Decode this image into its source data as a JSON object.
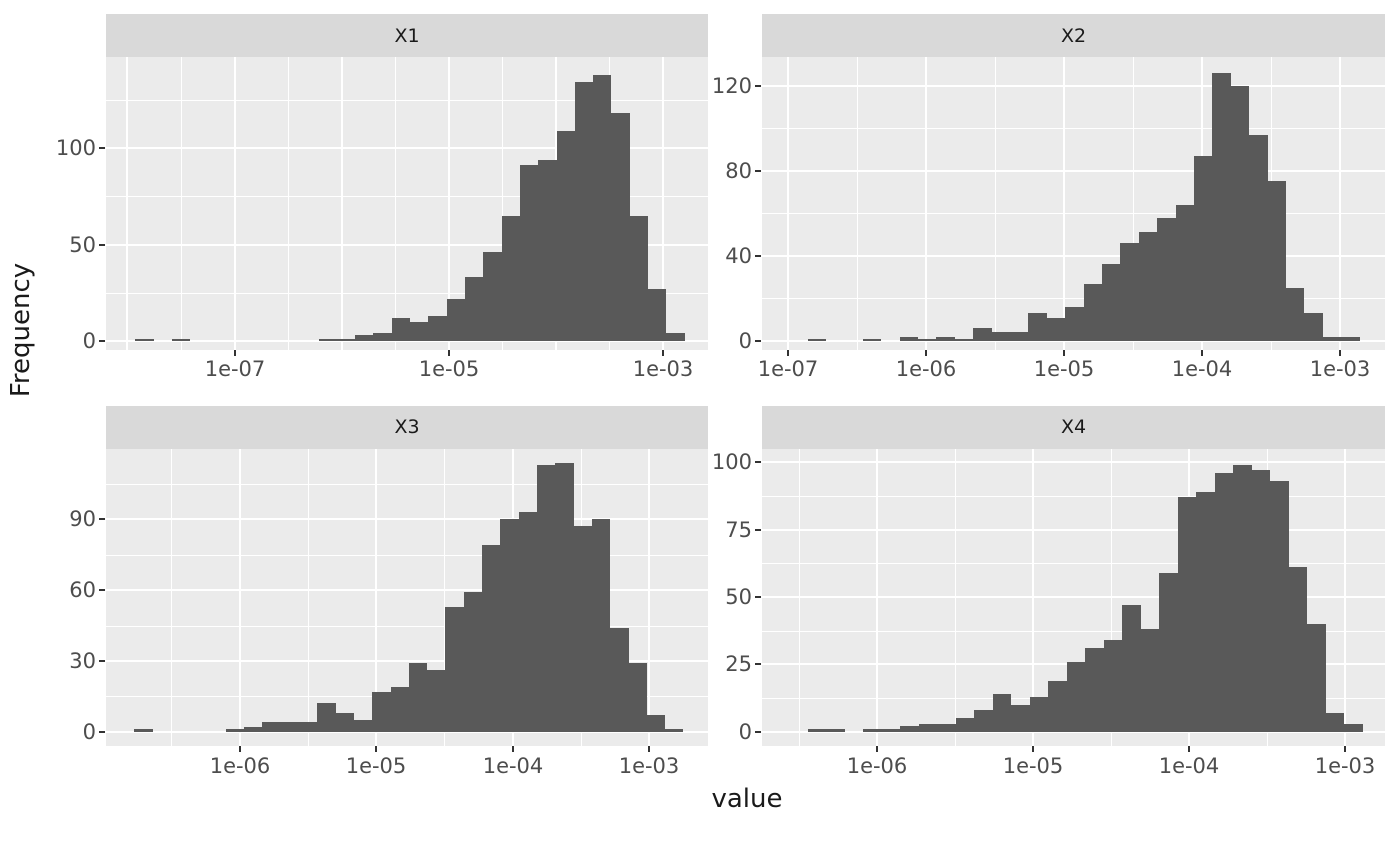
{
  "figure": {
    "x_axis_title": "value",
    "y_axis_title": "Frequency",
    "colors": {
      "page_bg": "#FFFFFF",
      "panel_bg": "#EBEBEB",
      "strip_bg": "#D9D9D9",
      "strip_text": "#1A1A1A",
      "bar": "#595959",
      "gridline": "#FFFFFF",
      "tick_label": "#4D4D4D",
      "tick_mark": "#333333",
      "axis_title": "#1A1A1A"
    }
  },
  "chart_data": [
    {
      "type": "bar",
      "subtype": "histogram",
      "facet": "X1",
      "x_scale": "log10",
      "xlim_log10": [
        -8.2,
        -2.58
      ],
      "ylim": [
        -4.65,
        147.15
      ],
      "grid": true,
      "x_ticks": [
        {
          "log10": -7,
          "label": "1e-07"
        },
        {
          "log10": -5,
          "label": "1e-05"
        },
        {
          "log10": -3,
          "label": "1e-03"
        }
      ],
      "x_grid_major_log10": [
        -8,
        -7,
        -6,
        -5,
        -4,
        -3
      ],
      "x_grid_minor_log10": [
        -7.5,
        -6.5,
        -5.5,
        -4.5,
        -3.5
      ],
      "y_ticks": [
        {
          "value": 0,
          "label": "0"
        },
        {
          "value": 50,
          "label": "50"
        },
        {
          "value": 100,
          "label": "100"
        }
      ],
      "y_grid_minor": [
        25,
        75,
        125
      ],
      "bins": {
        "start_log10": -7.925,
        "width_log10": 0.1709,
        "frequencies": [
          1,
          0,
          1,
          0,
          0,
          0,
          0,
          0,
          0,
          0,
          1,
          1,
          3,
          4,
          12,
          10,
          13,
          22,
          33,
          46,
          65,
          91,
          94,
          109,
          134,
          138,
          118,
          65,
          27,
          4
        ]
      }
    },
    {
      "type": "bar",
      "subtype": "histogram",
      "facet": "X2",
      "x_scale": "log10",
      "xlim_log10": [
        -7.186,
        -2.676
      ],
      "ylim": [
        -4.23,
        133.46
      ],
      "grid": true,
      "x_ticks": [
        {
          "log10": -7,
          "label": "1e-07"
        },
        {
          "log10": -6,
          "label": "1e-06"
        },
        {
          "log10": -5,
          "label": "1e-05"
        },
        {
          "log10": -4,
          "label": "1e-04"
        },
        {
          "log10": -3,
          "label": "1e-03"
        }
      ],
      "x_grid_major_log10": [
        -7,
        -6,
        -5,
        -4,
        -3
      ],
      "x_grid_minor_log10": [
        -6.5,
        -5.5,
        -4.5,
        -3.5
      ],
      "y_ticks": [
        {
          "value": 0,
          "label": "0"
        },
        {
          "value": 40,
          "label": "40"
        },
        {
          "value": 80,
          "label": "80"
        },
        {
          "value": 120,
          "label": "120"
        }
      ],
      "y_grid_minor": [
        20,
        60,
        100
      ],
      "bins": {
        "start_log10": -6.856,
        "width_log10": 0.1332,
        "frequencies": [
          1,
          0,
          0,
          1,
          0,
          2,
          1,
          2,
          1,
          6,
          4,
          4,
          13,
          11,
          16,
          27,
          36,
          46,
          51,
          58,
          64,
          87,
          126,
          120,
          97,
          75,
          25,
          13,
          2,
          2
        ]
      }
    },
    {
      "type": "bar",
      "subtype": "histogram",
      "facet": "X3",
      "x_scale": "log10",
      "xlim_log10": [
        -6.979,
        -2.569
      ],
      "ylim": [
        -5.83,
        120.0
      ],
      "grid": true,
      "x_ticks": [
        {
          "log10": -6,
          "label": "1e-06"
        },
        {
          "log10": -5,
          "label": "1e-05"
        },
        {
          "log10": -4,
          "label": "1e-04"
        },
        {
          "log10": -3,
          "label": "1e-03"
        }
      ],
      "x_grid_major_log10": [
        -6,
        -5,
        -4,
        -3
      ],
      "x_grid_minor_log10": [
        -6.5,
        -5.5,
        -4.5,
        -3.5
      ],
      "y_ticks": [
        {
          "value": 0,
          "label": "0"
        },
        {
          "value": 30,
          "label": "30"
        },
        {
          "value": 60,
          "label": "60"
        },
        {
          "value": 90,
          "label": "90"
        }
      ],
      "y_grid_minor": [
        15,
        45,
        75,
        105
      ],
      "bins": {
        "start_log10": -6.772,
        "width_log10": 0.1341,
        "frequencies": [
          1,
          0,
          0,
          0,
          0,
          1,
          2,
          4,
          4,
          4,
          12,
          8,
          5,
          17,
          19,
          29,
          26,
          53,
          59,
          79,
          90,
          93,
          113,
          114,
          87,
          90,
          44,
          29,
          7,
          1
        ]
      }
    },
    {
      "type": "bar",
      "subtype": "histogram",
      "facet": "X4",
      "x_scale": "log10",
      "xlim_log10": [
        -6.735,
        -2.741
      ],
      "ylim": [
        -5.11,
        105.08
      ],
      "grid": true,
      "x_ticks": [
        {
          "log10": -6,
          "label": "1e-06"
        },
        {
          "log10": -5,
          "label": "1e-05"
        },
        {
          "log10": -4,
          "label": "1e-04"
        },
        {
          "log10": -3,
          "label": "1e-03"
        }
      ],
      "x_grid_major_log10": [
        -6,
        -5,
        -4,
        -3
      ],
      "x_grid_minor_log10": [
        -6.5,
        -5.5,
        -4.5,
        -3.5
      ],
      "y_ticks": [
        {
          "value": 0,
          "label": "0"
        },
        {
          "value": 25,
          "label": "25"
        },
        {
          "value": 50,
          "label": "50"
        },
        {
          "value": 75,
          "label": "75"
        },
        {
          "value": 100,
          "label": "100"
        }
      ],
      "y_grid_minor": [
        12.5,
        37.5,
        62.5,
        87.5
      ],
      "bins": {
        "start_log10": -6.443,
        "width_log10": 0.1186,
        "frequencies": [
          1,
          1,
          0,
          1,
          1,
          2,
          3,
          3,
          5,
          8,
          14,
          10,
          13,
          19,
          26,
          31,
          34,
          47,
          38,
          59,
          87,
          89,
          96,
          99,
          97,
          93,
          61,
          40,
          7,
          3
        ]
      }
    }
  ]
}
